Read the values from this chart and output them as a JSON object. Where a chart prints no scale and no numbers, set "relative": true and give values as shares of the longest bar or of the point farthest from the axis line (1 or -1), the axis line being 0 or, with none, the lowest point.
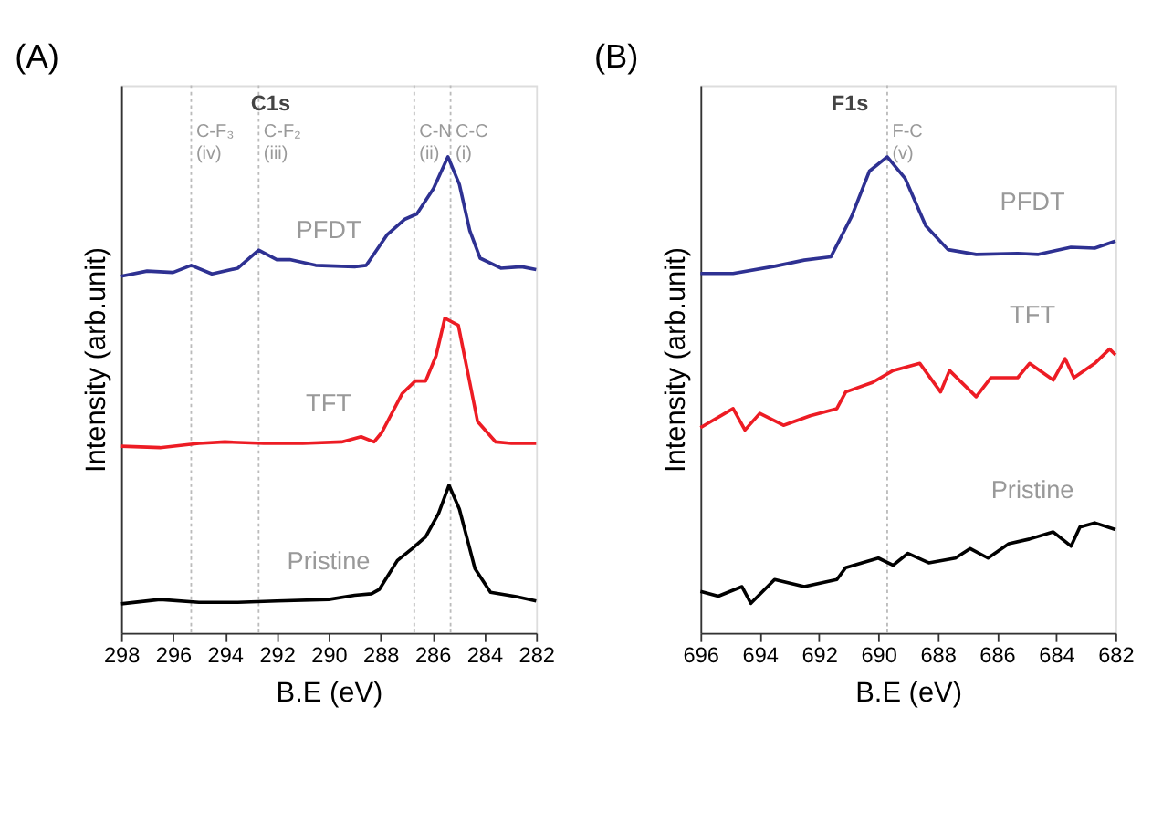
{
  "chart_data": [
    {
      "type": "line",
      "title": "(A)",
      "xlabel": "B.E (eV)",
      "ylabel": "Intensity (arb.unit)",
      "relative": true,
      "annotations": [
        "C1s"
      ],
      "xlim": [
        298,
        282
      ],
      "xticks": [
        298,
        296,
        294,
        292,
        290,
        288,
        286,
        284,
        282
      ],
      "tick_labels": "x",
      "grid": false,
      "marker": "none",
      "line_style": "solid",
      "ref_lines": [
        {
          "axis": "x",
          "value": 295.3,
          "label": "C-F₃ (iv)",
          "color": "#bbbbbb",
          "line_style": "dotted"
        },
        {
          "axis": "x",
          "value": 292.7,
          "label": "C-F₂ (iii)",
          "color": "#bbbbbb",
          "line_style": "dotted"
        },
        {
          "axis": "x",
          "value": 286.7,
          "label": "C-N (ii)",
          "color": "#bbbbbb",
          "line_style": "dotted"
        },
        {
          "axis": "x",
          "value": 285.3,
          "label": "C-C (i)",
          "color": "#bbbbbb",
          "line_style": "dotted"
        }
      ],
      "series": [
        {
          "name": "PFDT",
          "color": "#2e3192",
          "x": [
            298,
            297,
            296,
            295.3,
            294.5,
            293.5,
            292.7,
            292,
            291.5,
            290.5,
            289,
            288.55,
            287.75,
            287.06,
            286.6,
            285.96,
            285.4,
            284.96,
            284.56,
            284.16,
            283.36,
            282.56,
            282
          ],
          "values": [
            0.749,
            0.76,
            0.757,
            0.772,
            0.754,
            0.766,
            0.804,
            0.784,
            0.784,
            0.772,
            0.769,
            0.772,
            0.836,
            0.869,
            0.88,
            0.933,
            1.0,
            0.942,
            0.845,
            0.787,
            0.766,
            0.769,
            0.763
          ]
        },
        {
          "name": "TFT",
          "color": "#ed1c24",
          "x": [
            298,
            296.5,
            295,
            294,
            292.5,
            291,
            289.5,
            288.75,
            288.25,
            287.95,
            287.16,
            286.66,
            286.26,
            285.86,
            285.52,
            285.0,
            284.26,
            283.56,
            282.96,
            282
          ],
          "values": [
            0.392,
            0.389,
            0.398,
            0.401,
            0.398,
            0.398,
            0.401,
            0.412,
            0.401,
            0.421,
            0.503,
            0.529,
            0.529,
            0.582,
            0.661,
            0.646,
            0.444,
            0.401,
            0.398,
            0.398
          ]
        },
        {
          "name": "Pristine",
          "color": "#000000",
          "x": [
            298,
            296.5,
            295,
            293.5,
            292,
            290,
            289,
            288.35,
            288.05,
            287.35,
            286.76,
            286.26,
            285.76,
            285.36,
            284.96,
            284.36,
            283.76,
            282.76,
            282
          ],
          "values": [
            0.061,
            0.07,
            0.064,
            0.064,
            0.067,
            0.07,
            0.079,
            0.082,
            0.091,
            0.152,
            0.178,
            0.202,
            0.251,
            0.31,
            0.26,
            0.135,
            0.085,
            0.076,
            0.067
          ]
        }
      ]
    },
    {
      "type": "line",
      "title": "(B)",
      "xlabel": "B.E (eV)",
      "ylabel": "Intensity (arb.unit)",
      "relative": true,
      "annotations": [
        "F1s"
      ],
      "xlim": [
        696,
        682
      ],
      "xticks": [
        696,
        694,
        692,
        690,
        688,
        686,
        684,
        682
      ],
      "tick_labels": "x",
      "grid": false,
      "marker": "none",
      "line_style": "solid",
      "ref_lines": [
        {
          "axis": "x",
          "value": 689.7,
          "label": "F-C (v)",
          "color": "#bbbbbb",
          "line_style": "dotted"
        }
      ],
      "series": [
        {
          "name": "PFDT",
          "color": "#2e3192",
          "x": [
            696,
            694.9,
            693.5,
            692.5,
            691.6,
            690.9,
            690.3,
            689.7,
            689.1,
            688.4,
            687.65,
            686.7,
            685.3,
            684.6,
            683.5,
            682.7,
            682
          ],
          "values": [
            0.755,
            0.755,
            0.77,
            0.783,
            0.79,
            0.875,
            0.97,
            1.0,
            0.955,
            0.855,
            0.805,
            0.795,
            0.797,
            0.795,
            0.81,
            0.808,
            0.823
          ]
        },
        {
          "name": "TFT",
          "color": "#ed1c24",
          "x": [
            696,
            694.9,
            694.5,
            694.0,
            693.2,
            692.3,
            691.4,
            691.1,
            690.2,
            689.5,
            688.6,
            687.9,
            687.6,
            686.7,
            686.2,
            685.3,
            684.9,
            684.1,
            683.7,
            683.4,
            682.7,
            682.2,
            682
          ],
          "values": [
            0.431,
            0.471,
            0.426,
            0.461,
            0.436,
            0.456,
            0.471,
            0.506,
            0.526,
            0.551,
            0.566,
            0.506,
            0.551,
            0.496,
            0.536,
            0.536,
            0.566,
            0.531,
            0.576,
            0.536,
            0.566,
            0.596,
            0.584
          ]
        },
        {
          "name": "Pristine",
          "color": "#000000",
          "x": [
            696,
            695.4,
            694.6,
            694.3,
            693.5,
            692.5,
            691.4,
            691.1,
            690.0,
            689.5,
            689.0,
            688.3,
            687.4,
            686.9,
            686.3,
            685.6,
            684.9,
            684.1,
            683.5,
            683.2,
            682.7,
            682
          ],
          "values": [
            0.087,
            0.077,
            0.097,
            0.062,
            0.112,
            0.097,
            0.112,
            0.137,
            0.157,
            0.142,
            0.167,
            0.147,
            0.157,
            0.177,
            0.157,
            0.187,
            0.197,
            0.212,
            0.182,
            0.222,
            0.231,
            0.217
          ]
        }
      ]
    }
  ]
}
